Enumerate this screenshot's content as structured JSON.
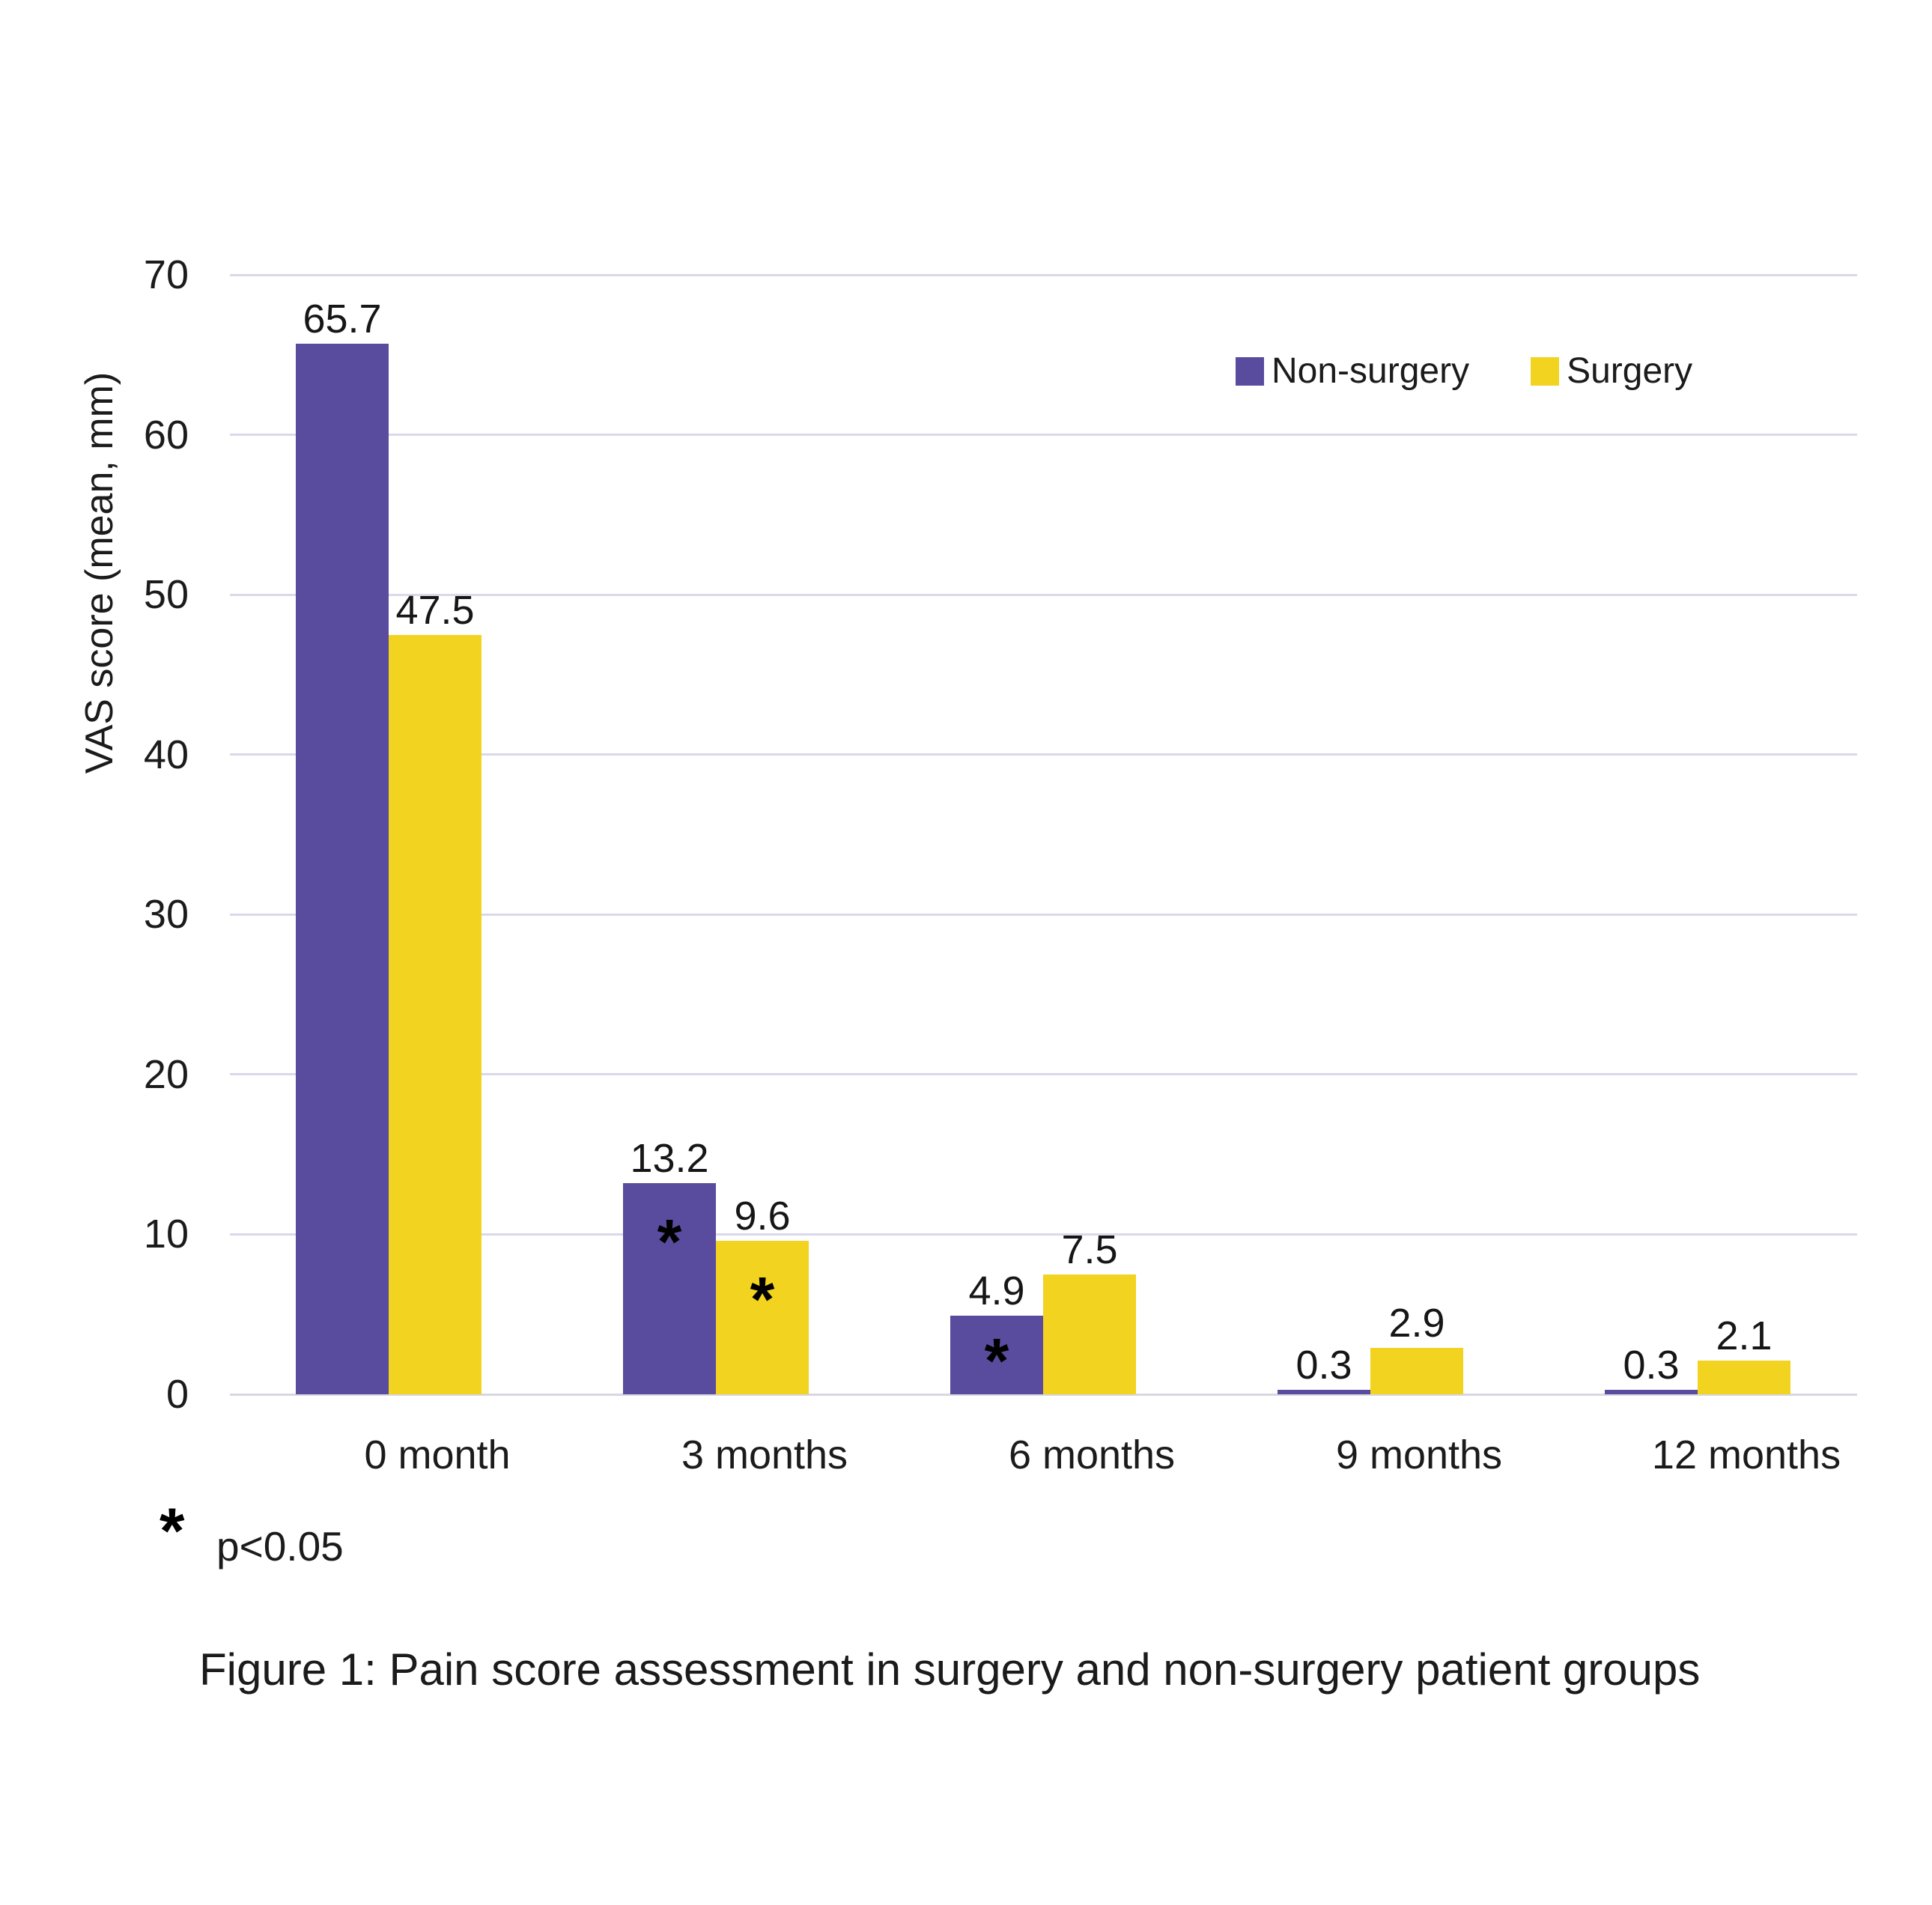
{
  "chart_data": {
    "type": "bar",
    "title": "",
    "ylabel": "VAS score (mean, mm)",
    "xlabel": "",
    "categories": [
      "0 month",
      "3 months",
      "6 months",
      "9 months",
      "12 months"
    ],
    "series": [
      {
        "name": "Non-surgery",
        "color": "#594b9d",
        "values": [
          65.7,
          13.2,
          4.9,
          0.3,
          0.3
        ],
        "significant": [
          false,
          true,
          true,
          false,
          false
        ]
      },
      {
        "name": "Surgery",
        "color": "#f2d320",
        "values": [
          47.5,
          9.6,
          7.5,
          2.9,
          2.1
        ],
        "significant": [
          false,
          true,
          false,
          false,
          false
        ]
      }
    ],
    "ylim": [
      0,
      70
    ],
    "yticks": [
      0,
      10,
      20,
      30,
      40,
      50,
      60,
      70
    ],
    "grid": true,
    "gridline_color": "#dad8ea",
    "legend_position": "top-right",
    "significance_marker": "*",
    "footnote_symbol": "*",
    "footnote_text": "p<0.05",
    "caption": "Figure 1: Pain score assessment in surgery and non-surgery patient groups"
  }
}
